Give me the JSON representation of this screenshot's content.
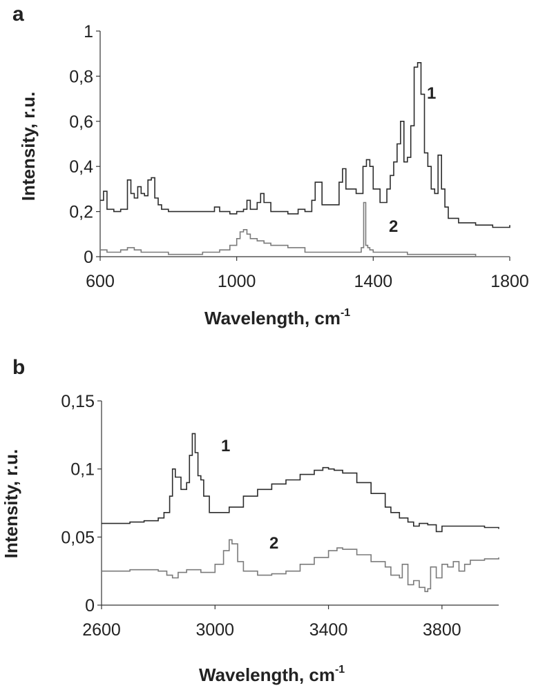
{
  "chart_data": [
    {
      "type": "line",
      "panel_label": "a",
      "xlabel": "Wavelength, cm",
      "xlabel_sup": "-1",
      "ylabel": "Intensity, r.u.",
      "xlim": [
        600,
        1800
      ],
      "ylim": [
        0,
        1
      ],
      "xticks": [
        600,
        1000,
        1400,
        1800
      ],
      "yticks": [
        0,
        0.2,
        0.4,
        0.6,
        0.8,
        1
      ],
      "xtick_labels": [
        "600",
        "1000",
        "1400",
        "1800"
      ],
      "ytick_labels": [
        "0",
        "0,2",
        "0,4",
        "0,6",
        "0,8",
        "1"
      ],
      "series": [
        {
          "name": "1",
          "color": "#2b2b2b",
          "x": [
            600,
            610,
            620,
            640,
            660,
            680,
            690,
            700,
            710,
            720,
            730,
            740,
            750,
            760,
            770,
            780,
            800,
            850,
            900,
            920,
            935,
            950,
            980,
            1000,
            1020,
            1030,
            1040,
            1060,
            1070,
            1080,
            1100,
            1150,
            1180,
            1200,
            1220,
            1230,
            1250,
            1270,
            1300,
            1310,
            1320,
            1350,
            1370,
            1380,
            1390,
            1400,
            1420,
            1440,
            1450,
            1460,
            1470,
            1480,
            1490,
            1500,
            1510,
            1520,
            1530,
            1540,
            1550,
            1560,
            1570,
            1580,
            1590,
            1600,
            1610,
            1620,
            1650,
            1700,
            1750,
            1800
          ],
          "y": [
            0.25,
            0.29,
            0.21,
            0.2,
            0.21,
            0.34,
            0.28,
            0.26,
            0.31,
            0.28,
            0.27,
            0.34,
            0.35,
            0.26,
            0.23,
            0.21,
            0.2,
            0.2,
            0.2,
            0.2,
            0.22,
            0.2,
            0.19,
            0.2,
            0.21,
            0.25,
            0.21,
            0.24,
            0.28,
            0.24,
            0.2,
            0.19,
            0.21,
            0.2,
            0.25,
            0.33,
            0.23,
            0.23,
            0.33,
            0.39,
            0.3,
            0.28,
            0.4,
            0.43,
            0.4,
            0.3,
            0.24,
            0.3,
            0.36,
            0.42,
            0.5,
            0.6,
            0.42,
            0.44,
            0.58,
            0.84,
            0.86,
            0.72,
            0.46,
            0.4,
            0.3,
            0.28,
            0.45,
            0.3,
            0.22,
            0.17,
            0.15,
            0.14,
            0.13,
            0.14
          ]
        },
        {
          "name": "2",
          "color": "#7a7a7a",
          "x": [
            600,
            620,
            640,
            660,
            680,
            700,
            720,
            740,
            760,
            800,
            850,
            900,
            950,
            980,
            1000,
            1010,
            1020,
            1030,
            1040,
            1060,
            1080,
            1100,
            1150,
            1200,
            1250,
            1300,
            1350,
            1365,
            1372,
            1378,
            1384,
            1390,
            1400,
            1450,
            1500,
            1600,
            1700,
            1800
          ],
          "y": [
            0.03,
            0.02,
            0.02,
            0.03,
            0.04,
            0.03,
            0.02,
            0.02,
            0.02,
            0.01,
            0.01,
            0.02,
            0.03,
            0.05,
            0.08,
            0.11,
            0.12,
            0.1,
            0.08,
            0.07,
            0.06,
            0.05,
            0.04,
            0.02,
            0.02,
            0.02,
            0.02,
            0.04,
            0.24,
            0.05,
            0.04,
            0.03,
            0.02,
            0.02,
            0.01,
            0.01,
            0.0,
            0.0
          ]
        }
      ]
    },
    {
      "type": "line",
      "panel_label": "b",
      "xlabel": "Wavelength, cm",
      "xlabel_sup": "-1",
      "ylabel": "Intensity, r.u.",
      "xlim": [
        2600,
        4000
      ],
      "ylim": [
        0,
        0.15
      ],
      "xticks": [
        2600,
        3000,
        3400,
        3800
      ],
      "yticks": [
        0,
        0.05,
        0.1,
        0.15
      ],
      "xtick_labels": [
        "2600",
        "3000",
        "3400",
        "3800"
      ],
      "ytick_labels": [
        "0",
        "0,05",
        "0,1",
        "0,15"
      ],
      "series": [
        {
          "name": "1",
          "color": "#2b2b2b",
          "x": [
            2600,
            2650,
            2700,
            2750,
            2800,
            2820,
            2840,
            2850,
            2860,
            2880,
            2900,
            2910,
            2920,
            2930,
            2940,
            2950,
            2960,
            2980,
            3000,
            3050,
            3100,
            3150,
            3200,
            3250,
            3300,
            3350,
            3380,
            3400,
            3420,
            3450,
            3500,
            3550,
            3600,
            3620,
            3650,
            3680,
            3700,
            3720,
            3750,
            3780,
            3800,
            3850,
            3900,
            3950,
            4000
          ],
          "y": [
            0.06,
            0.06,
            0.061,
            0.062,
            0.064,
            0.068,
            0.08,
            0.1,
            0.094,
            0.085,
            0.09,
            0.11,
            0.126,
            0.112,
            0.095,
            0.092,
            0.08,
            0.068,
            0.068,
            0.072,
            0.08,
            0.085,
            0.089,
            0.092,
            0.096,
            0.099,
            0.101,
            0.1,
            0.099,
            0.097,
            0.09,
            0.082,
            0.072,
            0.068,
            0.064,
            0.061,
            0.058,
            0.06,
            0.059,
            0.054,
            0.058,
            0.058,
            0.058,
            0.057,
            0.056
          ]
        },
        {
          "name": "2",
          "color": "#7a7a7a",
          "x": [
            2600,
            2650,
            2700,
            2750,
            2800,
            2830,
            2850,
            2870,
            2900,
            2950,
            3000,
            3030,
            3050,
            3060,
            3080,
            3100,
            3150,
            3200,
            3250,
            3300,
            3350,
            3400,
            3430,
            3450,
            3500,
            3550,
            3600,
            3620,
            3650,
            3660,
            3680,
            3700,
            3720,
            3740,
            3750,
            3760,
            3780,
            3800,
            3820,
            3840,
            3860,
            3880,
            3900,
            3950,
            4000
          ],
          "y": [
            0.025,
            0.025,
            0.026,
            0.026,
            0.025,
            0.022,
            0.02,
            0.024,
            0.026,
            0.024,
            0.03,
            0.04,
            0.048,
            0.045,
            0.032,
            0.025,
            0.022,
            0.023,
            0.025,
            0.03,
            0.035,
            0.04,
            0.042,
            0.041,
            0.037,
            0.032,
            0.028,
            0.022,
            0.02,
            0.03,
            0.015,
            0.018,
            0.013,
            0.01,
            0.012,
            0.028,
            0.02,
            0.03,
            0.028,
            0.032,
            0.025,
            0.03,
            0.033,
            0.034,
            0.035
          ]
        }
      ]
    }
  ]
}
